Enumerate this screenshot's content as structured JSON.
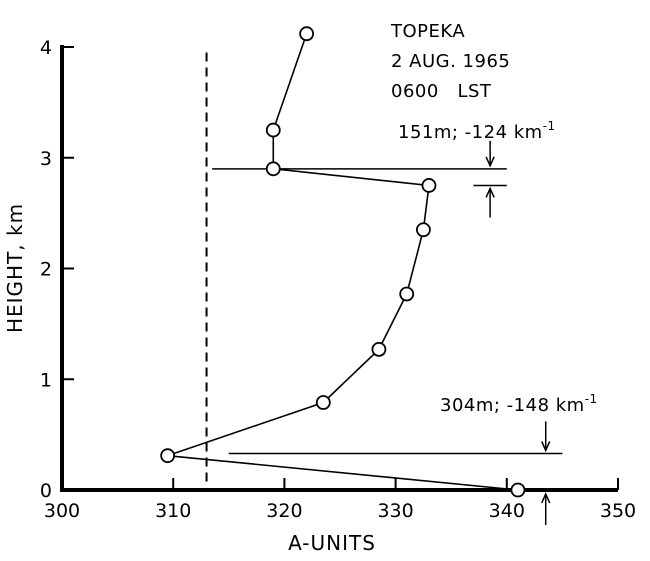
{
  "chart_data": {
    "type": "line",
    "title": "",
    "xlabel": "A-UNITS",
    "ylabel": "HEIGHT, km",
    "xlim": [
      300,
      350
    ],
    "ylim": [
      0,
      4
    ],
    "x_ticks": [
      "300",
      "310",
      "320",
      "330",
      "340",
      "350"
    ],
    "y_ticks": [
      "0",
      "1",
      "2",
      "3",
      "4"
    ],
    "grid": false,
    "series": [
      {
        "x": [
          341,
          309.5,
          323.5,
          328.5,
          331,
          332.5,
          333,
          319,
          319,
          322
        ],
        "y": [
          0.0,
          0.31,
          0.79,
          1.27,
          1.77,
          2.35,
          2.75,
          2.9,
          3.25,
          4.12
        ],
        "marker": "open-circle",
        "color": "#000000"
      }
    ],
    "reference_line": {
      "x": 313,
      "style": "dashed"
    },
    "annotations": {
      "station": "TOPEKA",
      "date": "2 AUG. 1965",
      "time": "0600   LST",
      "upper_layer": "151m; -124 km",
      "upper_layer_exp": "-1",
      "lower_layer": "304m; -148 km",
      "lower_layer_exp": "-1"
    }
  }
}
